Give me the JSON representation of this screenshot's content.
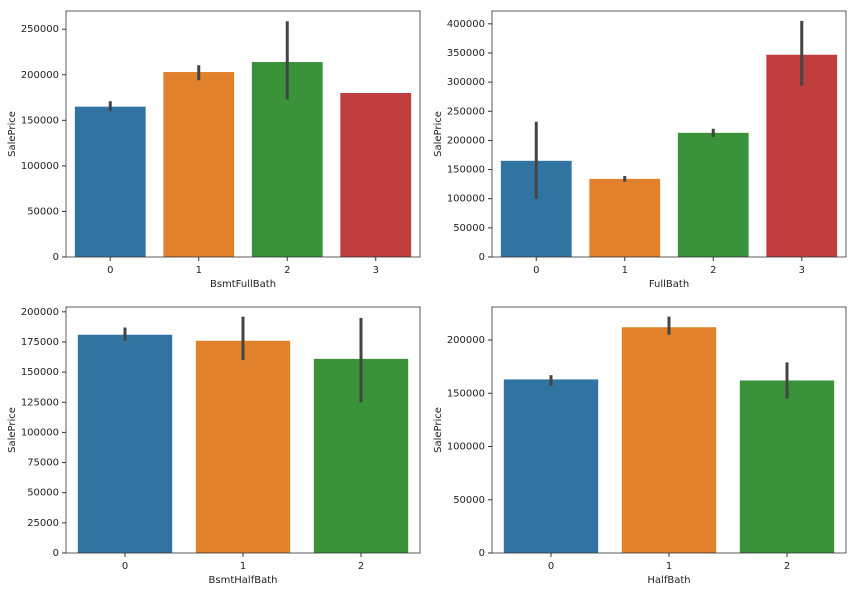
{
  "chart_data": [
    {
      "type": "bar",
      "xlabel": "BsmtFullBath",
      "ylabel": "SalePrice",
      "categories": [
        "0",
        "1",
        "2",
        "3"
      ],
      "values": [
        165000,
        203000,
        214000,
        180000
      ],
      "errors": [
        [
          160000,
          171000
        ],
        [
          194000,
          210500
        ],
        [
          173000,
          258800
        ],
        null
      ],
      "colors": [
        "#3274a1",
        "#e1812c",
        "#3a923a",
        "#c03d3e"
      ],
      "ylim": [
        0,
        270000
      ],
      "yticks": [
        0,
        50000,
        100000,
        150000,
        200000,
        250000
      ]
    },
    {
      "type": "bar",
      "xlabel": "FullBath",
      "ylabel": "SalePrice",
      "categories": [
        "0",
        "1",
        "2",
        "3"
      ],
      "values": [
        165000,
        134000,
        213000,
        347000
      ],
      "errors": [
        [
          100000,
          232000
        ],
        [
          129000,
          139000
        ],
        [
          206000,
          220000
        ],
        [
          294000,
          405000
        ]
      ],
      "colors": [
        "#3274a1",
        "#e1812c",
        "#3a923a",
        "#c03d3e"
      ],
      "ylim": [
        0,
        422000
      ],
      "yticks": [
        0,
        50000,
        100000,
        150000,
        200000,
        250000,
        300000,
        350000,
        400000
      ]
    },
    {
      "type": "bar",
      "xlabel": "BsmtHalfBath",
      "ylabel": "SalePrice",
      "categories": [
        "0",
        "1",
        "2"
      ],
      "values": [
        181000,
        176000,
        161000
      ],
      "errors": [
        [
          176000,
          187000
        ],
        [
          160000,
          196000
        ],
        [
          125000,
          195000
        ]
      ],
      "colors": [
        "#3274a1",
        "#e1812c",
        "#3a923a"
      ],
      "ylim": [
        0,
        204000
      ],
      "yticks": [
        0,
        25000,
        50000,
        75000,
        100000,
        125000,
        150000,
        175000,
        200000
      ]
    },
    {
      "type": "bar",
      "xlabel": "HalfBath",
      "ylabel": "SalePrice",
      "categories": [
        "0",
        "1",
        "2"
      ],
      "values": [
        163000,
        212000,
        162000
      ],
      "errors": [
        [
          157000,
          167000
        ],
        [
          205000,
          222000
        ],
        [
          145000,
          179000
        ]
      ],
      "colors": [
        "#3274a1",
        "#e1812c",
        "#3a923a"
      ],
      "ylim": [
        0,
        231000
      ],
      "yticks": [
        0,
        50000,
        100000,
        150000,
        200000
      ]
    }
  ]
}
